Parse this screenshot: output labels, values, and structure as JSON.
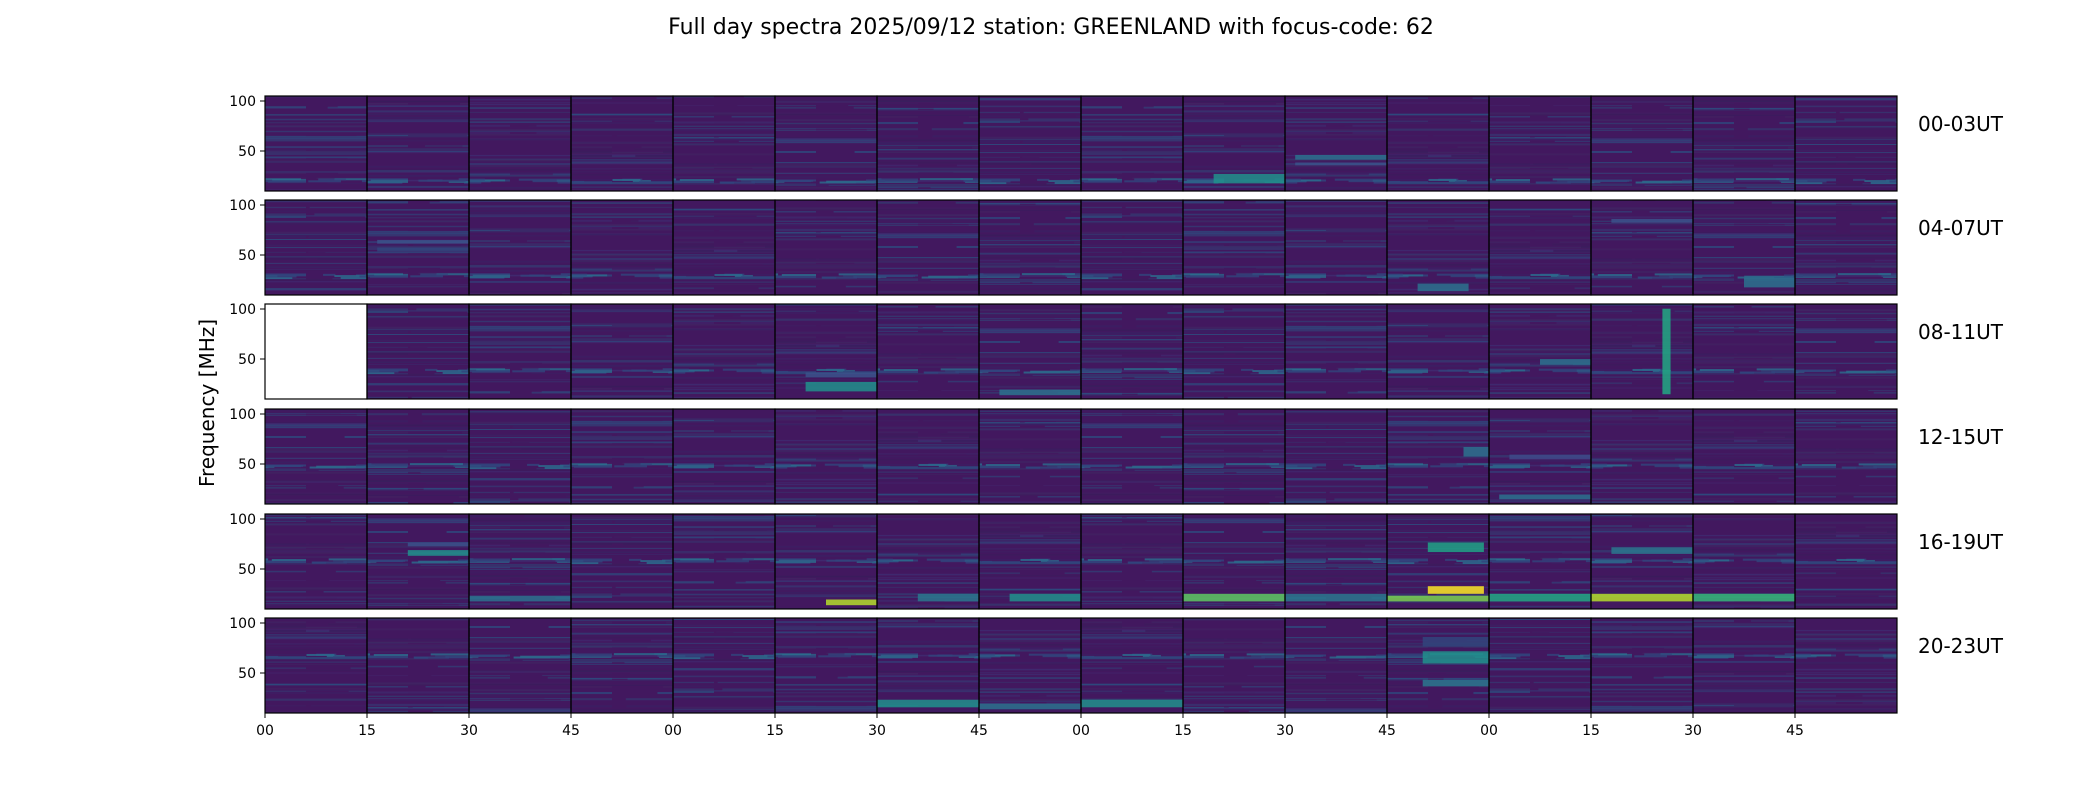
{
  "chart_data": {
    "type": "heatmap",
    "title": "Full day spectra 2025/09/12 station: GREENLAND with focus-code: 62",
    "ylabel": "Frequency [MHz]",
    "xlabel": "",
    "x_tick_labels": [
      "00",
      "15",
      "30",
      "45",
      "00",
      "15",
      "30",
      "45",
      "00",
      "15",
      "30",
      "45",
      "00",
      "15",
      "30",
      "45"
    ],
    "y_tick_labels": [
      "100",
      "50"
    ],
    "y_ticks": [
      100,
      50
    ],
    "ylim": [
      10,
      105
    ],
    "colormap": "viridis",
    "panels_per_row": 16,
    "rows": [
      {
        "label": "00-03UT",
        "missing_panels": []
      },
      {
        "label": "04-07UT",
        "missing_panels": []
      },
      {
        "label": "08-11UT",
        "missing_panels": [
          0
        ]
      },
      {
        "label": "12-15UT",
        "missing_panels": []
      },
      {
        "label": "16-19UT",
        "missing_panels": []
      },
      {
        "label": "20-23UT",
        "missing_panels": []
      }
    ]
  }
}
